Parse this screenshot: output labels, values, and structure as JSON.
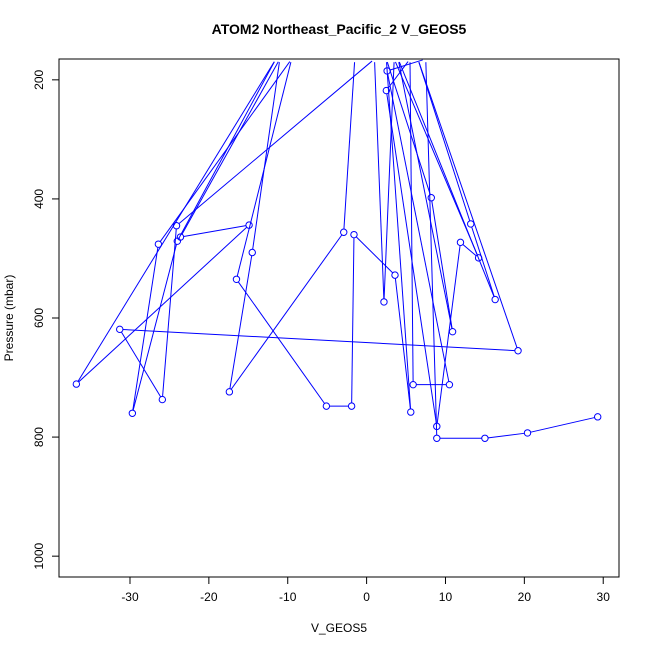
{
  "chart_data": {
    "type": "line",
    "title": "ATOM2 Northeast_Pacific_2 V_GEOS5",
    "xlabel": "V_GEOS5",
    "ylabel": "Pressure (mbar)",
    "xlim": [
      -39,
      32
    ],
    "ylim": [
      1035,
      165
    ],
    "y_reversed": true,
    "xticks": [
      -30,
      -20,
      -10,
      0,
      10,
      20,
      30
    ],
    "xtick_labels": [
      "-30",
      "-20",
      "-10",
      "0",
      "10",
      "20",
      "30"
    ],
    "yticks": [
      200,
      400,
      600,
      800,
      1000
    ],
    "ytick_labels": [
      "200",
      "400",
      "600",
      "800",
      "1000"
    ],
    "grid": false,
    "series_color": "#0000ff",
    "marker": "open-circle",
    "series": [
      {
        "points": [
          {
            "x": 29.3,
            "y": 766
          },
          {
            "x": 20.4,
            "y": 793
          },
          {
            "x": 15.0,
            "y": 802
          },
          {
            "x": 8.9,
            "y": 802
          },
          {
            "x": 7.5,
            "y": 165
          },
          {
            "x": 2.6,
            "y": 185
          },
          {
            "x": 10.5,
            "y": 712
          },
          {
            "x": 5.9,
            "y": 712
          },
          {
            "x": 5.5,
            "y": 165
          },
          {
            "x": 2.5,
            "y": 218
          },
          {
            "x": 8.9,
            "y": 782
          },
          {
            "x": 11.9,
            "y": 473
          },
          {
            "x": 14.2,
            "y": 499
          },
          {
            "x": 3.5,
            "y": 165
          },
          {
            "x": 2.2,
            "y": 573
          },
          {
            "x": 1.0,
            "y": 165
          },
          {
            "x": -24.1,
            "y": 445
          },
          {
            "x": -25.9,
            "y": 737
          },
          {
            "x": -31.3,
            "y": 619
          },
          {
            "x": 19.2,
            "y": 655
          },
          {
            "x": 6.5,
            "y": 165
          },
          {
            "x": 13.2,
            "y": 442
          },
          {
            "x": 16.3,
            "y": 569
          },
          {
            "x": 4.0,
            "y": 165
          },
          {
            "x": 10.9,
            "y": 623
          },
          {
            "x": 8.2,
            "y": 398
          },
          {
            "x": 2.5,
            "y": 165
          },
          {
            "x": 5.6,
            "y": 758
          },
          {
            "x": 3.6,
            "y": 528
          },
          {
            "x": -1.6,
            "y": 460
          },
          {
            "x": -1.9,
            "y": 748
          },
          {
            "x": -5.1,
            "y": 748
          },
          {
            "x": -16.5,
            "y": 535
          },
          {
            "x": -9.5,
            "y": 165
          },
          {
            "x": -26.4,
            "y": 476
          },
          {
            "x": -29.7,
            "y": 760
          },
          {
            "x": -24.0,
            "y": 471
          },
          {
            "x": -11.5,
            "y": 165
          },
          {
            "x": -36.8,
            "y": 711
          },
          {
            "x": -14.9,
            "y": 444
          },
          {
            "x": -23.6,
            "y": 464
          },
          {
            "x": -11.0,
            "y": 165
          },
          {
            "x": -14.5,
            "y": 490
          },
          {
            "x": -17.4,
            "y": 724
          },
          {
            "x": -2.9,
            "y": 456
          },
          {
            "x": -1.5,
            "y": 165
          }
        ]
      }
    ]
  }
}
